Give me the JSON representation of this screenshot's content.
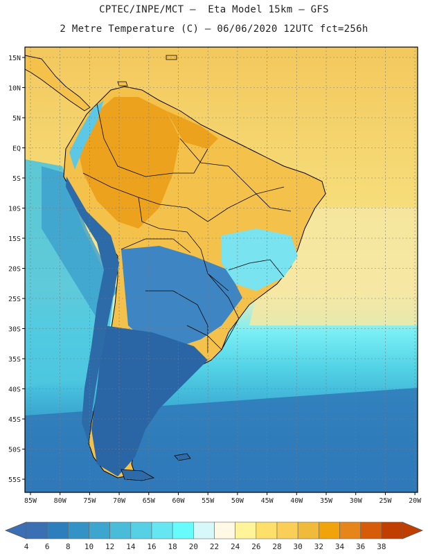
{
  "header": {
    "line1": "CPTEC/INPE/MCT –  Eta Model 15km – GFS",
    "line2": "2 Metre Temperature (C) – 06/06/2020 12UTC fct=256h"
  },
  "map": {
    "lat_labels": [
      "15N",
      "10N",
      "5N",
      "EQ",
      "5S",
      "10S",
      "15S",
      "20S",
      "25S",
      "30S",
      "35S",
      "40S",
      "45S",
      "50S",
      "55S"
    ],
    "lon_labels": [
      "85W",
      "80W",
      "75W",
      "70W",
      "65W",
      "60W",
      "55W",
      "50W",
      "45W",
      "40W",
      "35W",
      "30W",
      "25W",
      "20W"
    ],
    "colors": {
      "ocean_north": "#f7d36a",
      "ocean_warm": "#f5e38c",
      "ocean_mid": "#5dd8e8",
      "ocean_cold": "#2f86c0",
      "land_hot": "#eea51e",
      "land_warm": "#f5c045",
      "land_cool": "#8ae6f0",
      "land_cold": "#2c6aa8",
      "border": "#000000"
    }
  },
  "colorbar": {
    "values": [
      "4",
      "6",
      "8",
      "10",
      "12",
      "14",
      "16",
      "18",
      "20",
      "22",
      "24",
      "26",
      "28",
      "30",
      "32",
      "34",
      "36",
      "38"
    ],
    "colors": [
      "#3a6fb3",
      "#2d7ebd",
      "#3493c6",
      "#3ca6cf",
      "#48bcd9",
      "#56d0e4",
      "#66e6f0",
      "#68fbfb",
      "#d6f8f8",
      "#fff8e4",
      "#fff49a",
      "#fde06a",
      "#f9cf58",
      "#f0ba3a",
      "#f0a30a",
      "#e6861a",
      "#d75c0a",
      "#c03e00"
    ],
    "left_arrow_color": "#3a6fb3",
    "right_arrow_color": "#c03e00"
  }
}
